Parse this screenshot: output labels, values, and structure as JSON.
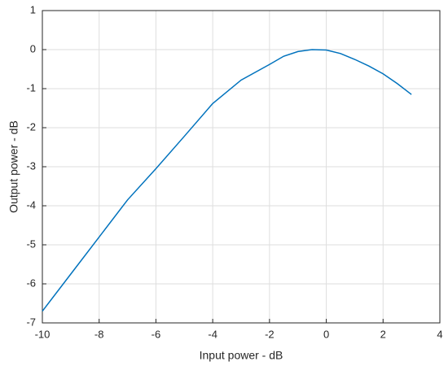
{
  "chart_data": {
    "type": "line",
    "xlabel": "Input power - dB",
    "ylabel": "Output power - dB",
    "x": [
      -10,
      -9,
      -8,
      -7,
      -6,
      -5,
      -4,
      -3,
      -2,
      -1.5,
      -1,
      -0.5,
      0,
      0.5,
      1,
      1.5,
      2,
      2.5,
      3
    ],
    "series": [
      {
        "name": "Output power",
        "color": "#0072bd",
        "values": [
          -6.7,
          -5.75,
          -4.8,
          -3.85,
          -3.05,
          -2.22,
          -1.38,
          -0.78,
          -0.38,
          -0.17,
          -0.05,
          0,
          -0.01,
          -0.1,
          -0.25,
          -0.42,
          -0.62,
          -0.87,
          -1.15
        ]
      }
    ],
    "xlim": [
      -10,
      4
    ],
    "xticks": [
      -10,
      -8,
      -6,
      -4,
      -2,
      0,
      2,
      4
    ],
    "ylim": [
      -7,
      1
    ],
    "yticks": [
      -7,
      -6,
      -5,
      -4,
      -3,
      -2,
      -1,
      0,
      1
    ],
    "grid": true
  }
}
